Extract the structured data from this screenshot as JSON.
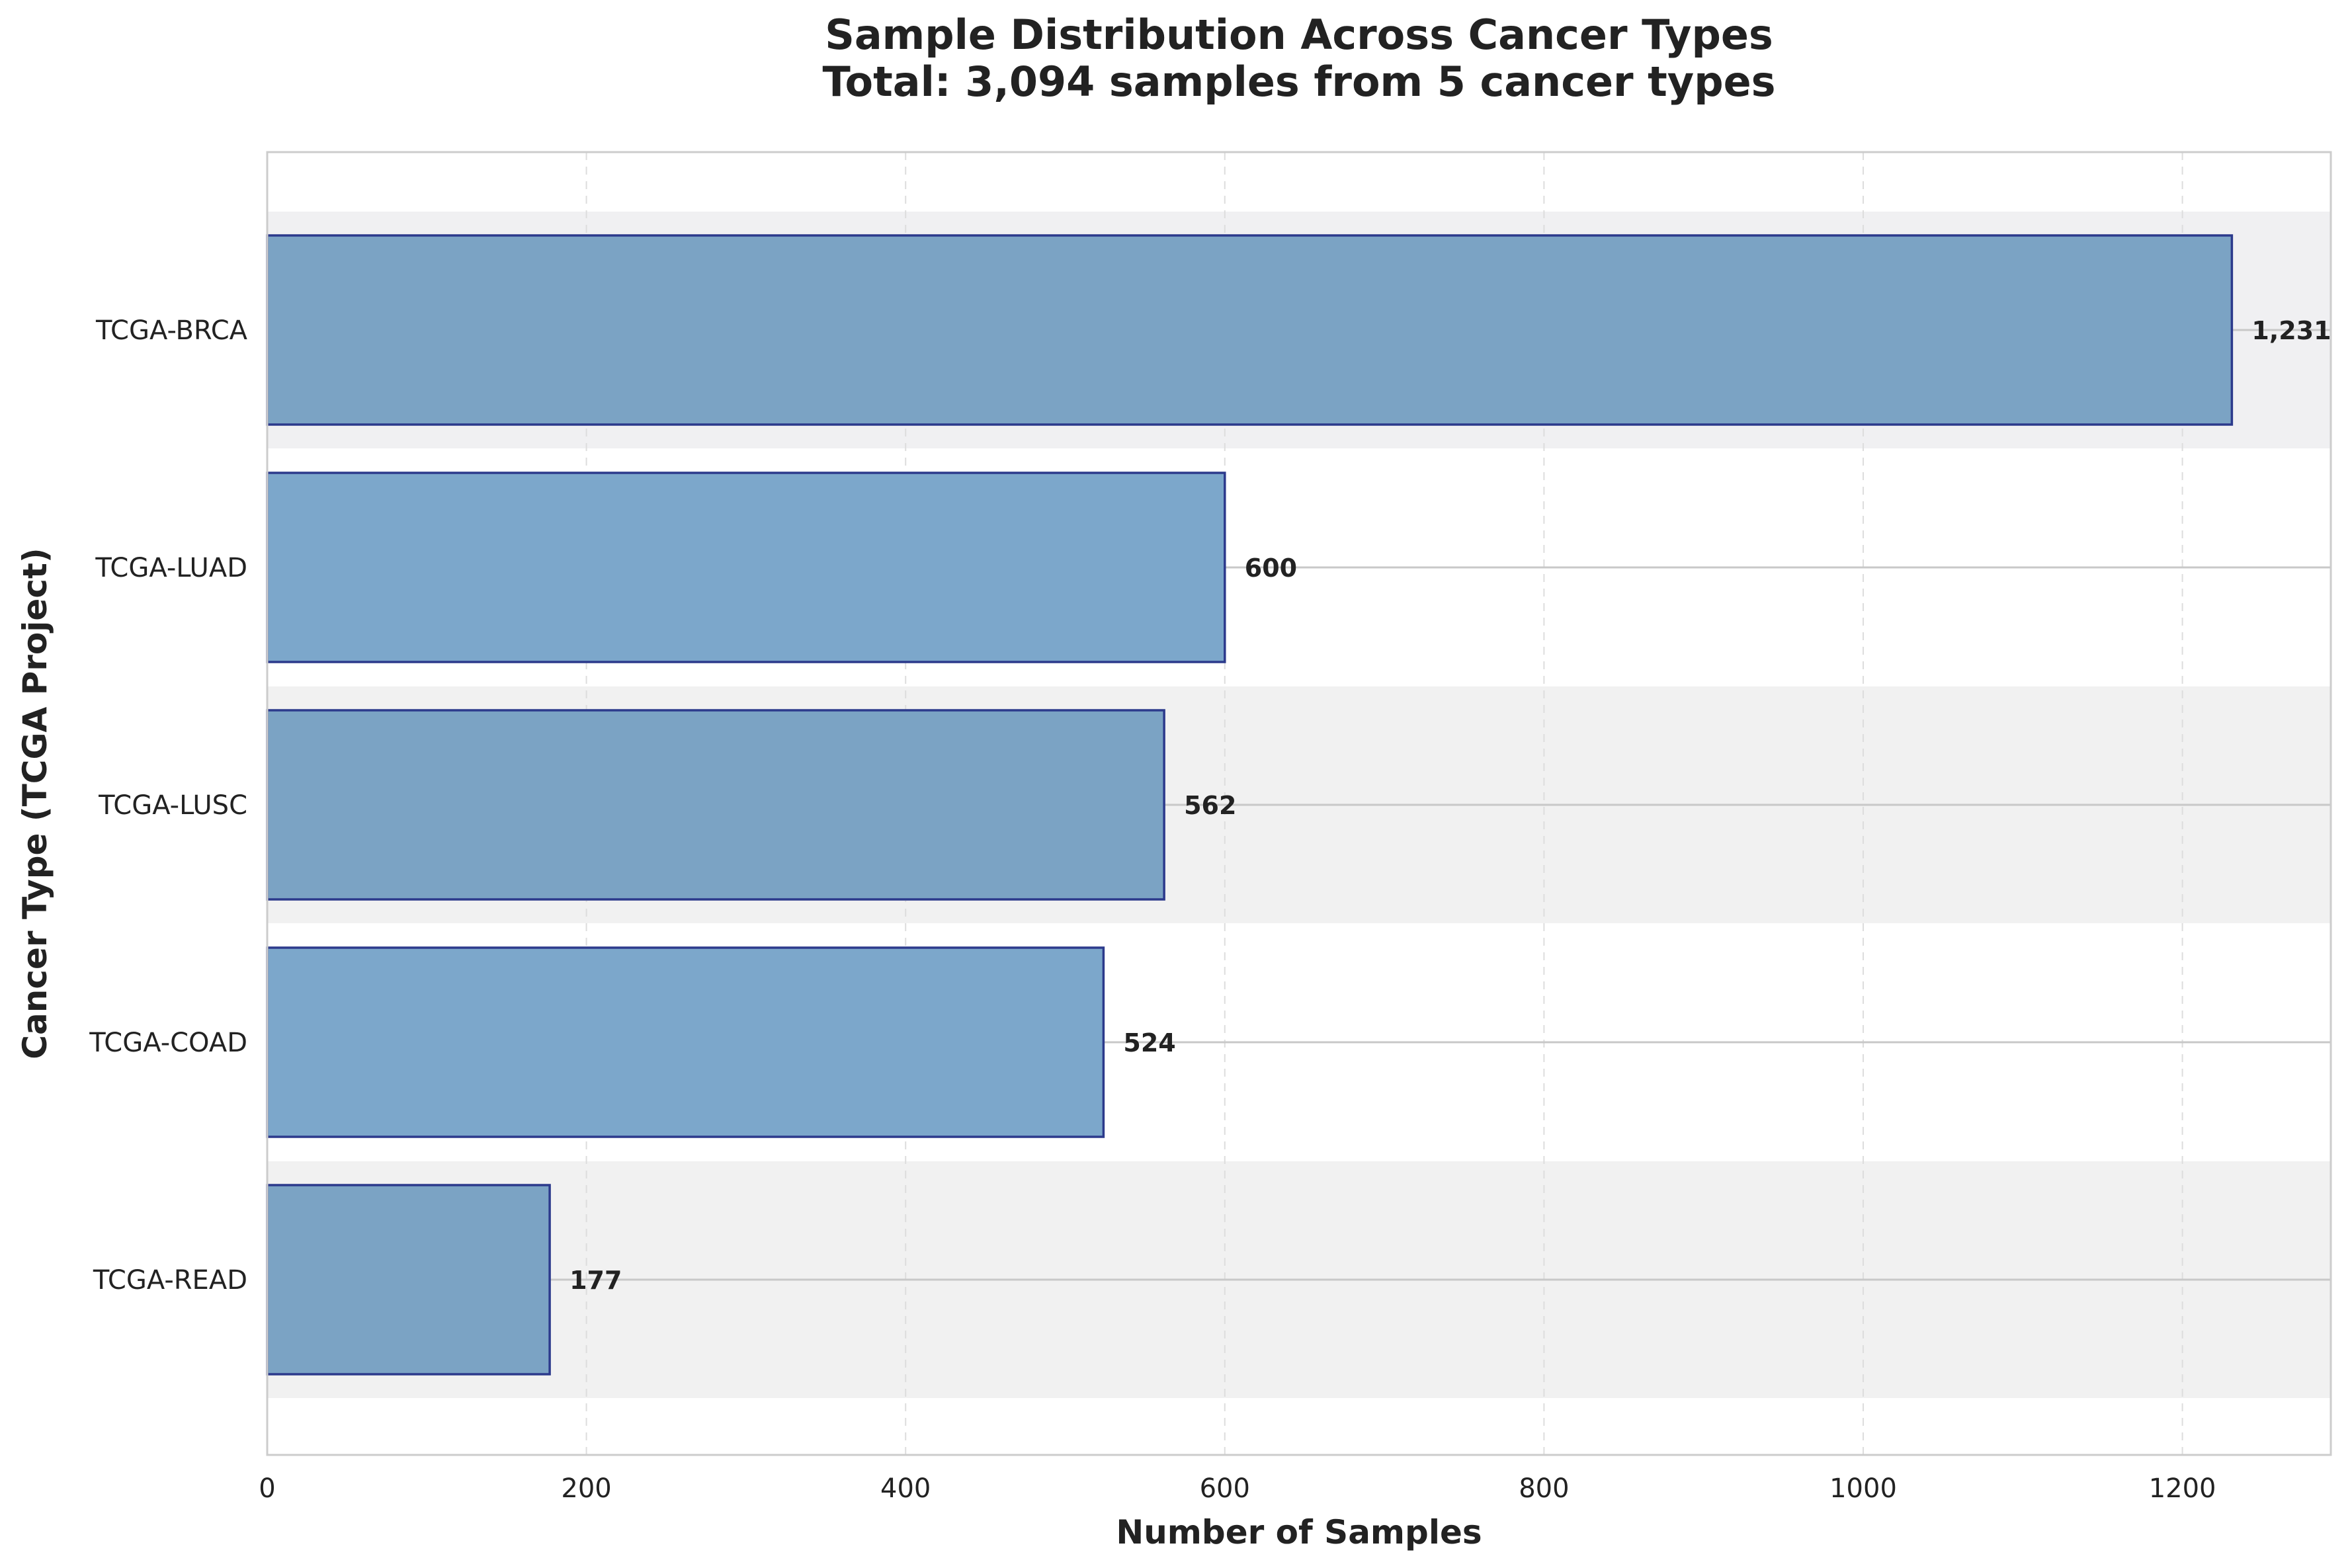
{
  "chart_data": {
    "type": "bar",
    "orientation": "horizontal",
    "title": "Sample Distribution Across Cancer Types",
    "subtitle": "Total: 3,094 samples from 5 cancer types",
    "xlabel": "Number of Samples",
    "ylabel": "Cancer Type (TCGA Project)",
    "categories": [
      "TCGA-BRCA",
      "TCGA-LUAD",
      "TCGA-LUSC",
      "TCGA-COAD",
      "TCGA-READ"
    ],
    "values": [
      1231,
      600,
      562,
      524,
      177
    ],
    "value_labels": [
      "1,231",
      "600",
      "562",
      "524",
      "177"
    ],
    "bar_colors": [
      "#7ba3c4",
      "#7ca7cb",
      "#7ba3c4",
      "#7ca7cb",
      "#7ba3c4"
    ],
    "bar_edge_color": "#2c3a8c",
    "band_colors": [
      "#f0f0f2",
      "#ffffff",
      "#f1f1f1",
      "#ffffff",
      "#f1f1f1"
    ],
    "xlim": [
      0,
      1293
    ],
    "xticks": [
      0,
      200,
      400,
      600,
      800,
      1000,
      1200
    ],
    "xtick_labels": [
      "0",
      "200",
      "400",
      "600",
      "800",
      "1000",
      "1200"
    ],
    "grid": true,
    "legend": "none"
  }
}
